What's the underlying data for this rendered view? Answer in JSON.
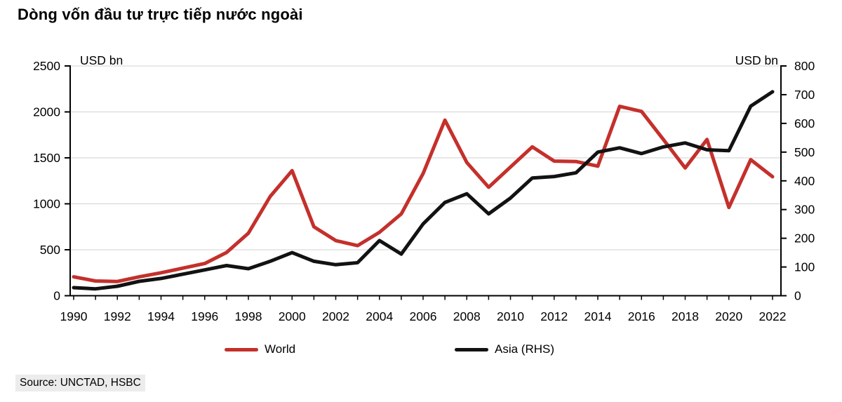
{
  "title": "Dòng vốn đầu tư trực tiếp nước ngoài",
  "source": "Source: UNCTAD, HSBC",
  "left_axis_label": "USD bn",
  "right_axis_label": "USD bn",
  "legend": [
    {
      "label": "World",
      "color": "#c4302b"
    },
    {
      "label": "Asia (RHS)",
      "color": "#121212"
    }
  ],
  "colors": {
    "world_red": "#c4302b",
    "asia_black": "#121212",
    "gridline": "#d9d9d9",
    "axis": "#000000",
    "source_bg": "#ececec"
  },
  "chart_data": {
    "type": "line",
    "title": "Dòng vốn đầu tư trực tiếp nước ngoài",
    "xlabel": "",
    "ylabel_left": "USD bn",
    "ylabel_right": "USD bn",
    "grid": true,
    "legend_position": "bottom",
    "ylim_left": [
      0,
      2500
    ],
    "ylim_right": [
      0,
      800
    ],
    "x": [
      1990,
      1991,
      1992,
      1993,
      1994,
      1995,
      1996,
      1997,
      1998,
      1999,
      2000,
      2001,
      2002,
      2003,
      2004,
      2005,
      2006,
      2007,
      2008,
      2009,
      2010,
      2011,
      2012,
      2013,
      2014,
      2015,
      2016,
      2017,
      2018,
      2019,
      2020,
      2021,
      2022
    ],
    "x_ticks": [
      {
        "year": 1990,
        "label": "1990"
      },
      {
        "year": 1992,
        "label": "1992"
      },
      {
        "year": 1994,
        "label": "1994"
      },
      {
        "year": 1996,
        "label": "1996"
      },
      {
        "year": 1998,
        "label": "1998"
      },
      {
        "year": 2000,
        "label": "2000"
      },
      {
        "year": 2002,
        "label": "2002"
      },
      {
        "year": 2004,
        "label": "2004"
      },
      {
        "year": 2006,
        "label": "2006"
      },
      {
        "year": 2008,
        "label": "2008"
      },
      {
        "year": 2010,
        "label": "2010"
      },
      {
        "year": 2012,
        "label": "2012"
      },
      {
        "year": 2014,
        "label": "2014"
      },
      {
        "year": 2016,
        "label": "2016"
      },
      {
        "year": 2018,
        "label": "2018"
      },
      {
        "year": 2020,
        "label": "2020"
      },
      {
        "year": 2022,
        "label": "2022"
      }
    ],
    "left_ticks": [
      {
        "value": 0,
        "label": "0"
      },
      {
        "value": 500,
        "label": "500"
      },
      {
        "value": 1000,
        "label": "1000"
      },
      {
        "value": 1500,
        "label": "1500"
      },
      {
        "value": 2000,
        "label": "2000"
      },
      {
        "value": 2500,
        "label": "2500"
      }
    ],
    "right_ticks": [
      {
        "value": 0,
        "label": "0"
      },
      {
        "value": 100,
        "label": "100"
      },
      {
        "value": 200,
        "label": "200"
      },
      {
        "value": 300,
        "label": "300"
      },
      {
        "value": 400,
        "label": "400"
      },
      {
        "value": 500,
        "label": "500"
      },
      {
        "value": 600,
        "label": "600"
      },
      {
        "value": 700,
        "label": "700"
      },
      {
        "value": 800,
        "label": "800"
      }
    ],
    "series": [
      {
        "name": "World",
        "axis": "left",
        "color": "#c4302b",
        "values": [
          205,
          160,
          155,
          205,
          250,
          300,
          350,
          470,
          680,
          1080,
          1360,
          750,
          600,
          545,
          690,
          890,
          1330,
          1910,
          1450,
          1180,
          1400,
          1620,
          1465,
          1460,
          1410,
          2060,
          2005,
          1700,
          1390,
          1700,
          960,
          1480,
          1295
        ]
      },
      {
        "name": "Asia (RHS)",
        "axis": "right",
        "color": "#121212",
        "values": [
          28,
          24,
          33,
          50,
          60,
          75,
          90,
          105,
          94,
          120,
          150,
          120,
          108,
          115,
          192,
          145,
          250,
          325,
          355,
          285,
          340,
          410,
          415,
          428,
          500,
          515,
          495,
          518,
          532,
          508,
          505,
          660,
          710
        ]
      }
    ]
  }
}
